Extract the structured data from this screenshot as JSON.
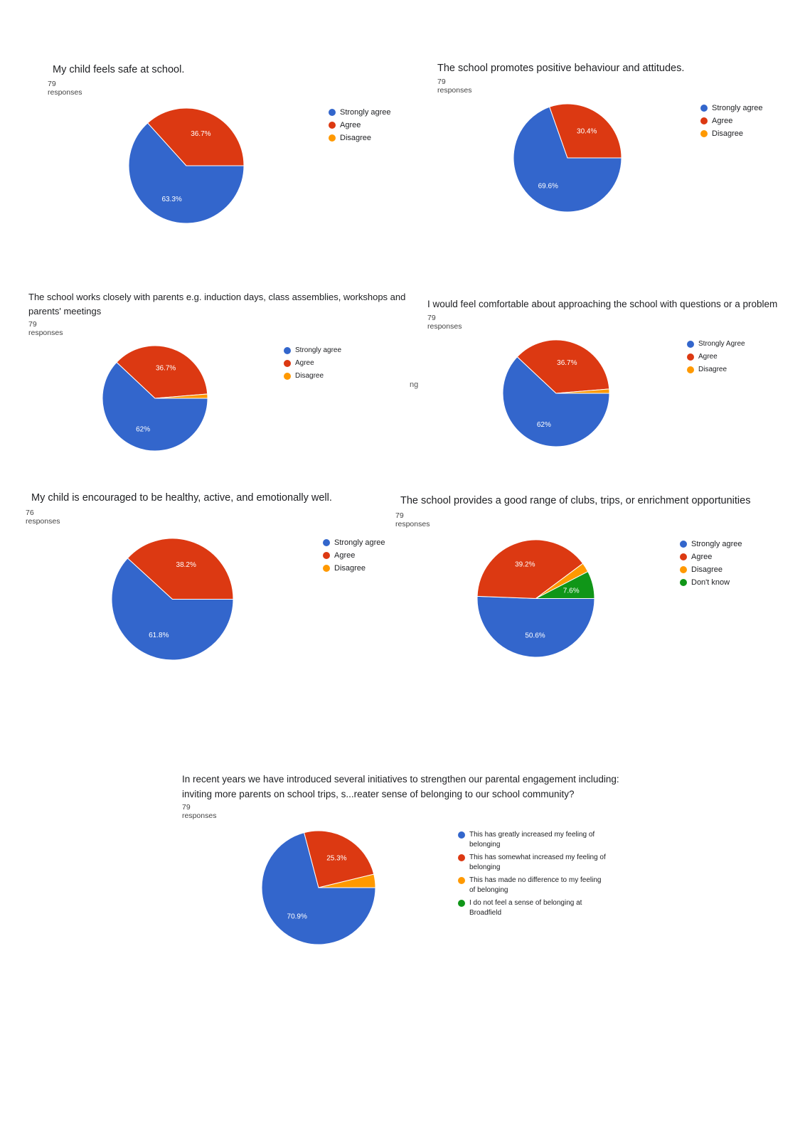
{
  "colors": {
    "blue": "#3366CC",
    "red": "#DC3912",
    "orange": "#FF9900",
    "green": "#109618"
  },
  "stray_text": "ng",
  "chart_data": [
    {
      "type": "pie",
      "title": "My child feels safe at school.",
      "subtitle": "79 responses",
      "legend_position": "right",
      "labels": [
        "Strongly agree",
        "Agree",
        "Disagree"
      ],
      "values": [
        63.3,
        36.7,
        0
      ],
      "data_labels": [
        "63.3%",
        "36.7%",
        ""
      ],
      "colors": [
        "#3366CC",
        "#DC3912",
        "#FF9900"
      ]
    },
    {
      "type": "pie",
      "title": "The school promotes positive behaviour and attitudes.",
      "subtitle": "79 responses",
      "legend_position": "right",
      "labels": [
        "Strongly agree",
        "Agree",
        "Disagree"
      ],
      "values": [
        69.6,
        30.4,
        0
      ],
      "data_labels": [
        "69.6%",
        "30.4%",
        ""
      ],
      "colors": [
        "#3366CC",
        "#DC3912",
        "#FF9900"
      ]
    },
    {
      "type": "pie",
      "title": "The school works closely with parents e.g. induction days, class assemblies, workshops and parents' meetings",
      "subtitle": "79 responses",
      "legend_position": "right",
      "labels": [
        "Strongly agree",
        "Agree",
        "Disagree"
      ],
      "values": [
        62,
        36.7,
        1.3
      ],
      "data_labels": [
        "62%",
        "36.7%",
        ""
      ],
      "colors": [
        "#3366CC",
        "#DC3912",
        "#FF9900"
      ]
    },
    {
      "type": "pie",
      "title": "I would feel comfortable about approaching the school with questions or a problem",
      "subtitle": "79 responses",
      "legend_position": "right",
      "labels": [
        "Strongly Agree",
        "Agree",
        "Disagree"
      ],
      "values": [
        62,
        36.7,
        1.3
      ],
      "data_labels": [
        "62%",
        "36.7%",
        ""
      ],
      "colors": [
        "#3366CC",
        "#DC3912",
        "#FF9900"
      ]
    },
    {
      "type": "pie",
      "title": "My child is encouraged to be healthy, active, and emotionally well.",
      "subtitle": "76 responses",
      "legend_position": "right",
      "labels": [
        "Strongly agree",
        "Agree",
        "Disagree"
      ],
      "values": [
        61.8,
        38.2,
        0
      ],
      "data_labels": [
        "61.8%",
        "38.2%",
        ""
      ],
      "colors": [
        "#3366CC",
        "#DC3912",
        "#FF9900"
      ]
    },
    {
      "type": "pie",
      "title": "The school provides a good range of clubs, trips, or enrichment opportunities",
      "subtitle": "79 responses",
      "legend_position": "right",
      "labels": [
        "Strongly agree",
        "Agree",
        "Disagree",
        "Don't know"
      ],
      "values": [
        50.6,
        39.2,
        2.6,
        7.6
      ],
      "data_labels": [
        "50.6%",
        "39.2%",
        "",
        "7.6%"
      ],
      "colors": [
        "#3366CC",
        "#DC3912",
        "#FF9900",
        "#109618"
      ]
    },
    {
      "type": "pie",
      "title": "In recent years we have introduced several initiatives to strengthen our parental engagement including: inviting more parents on school trips, s...reater sense of belonging to our school community?",
      "subtitle": "79 responses",
      "legend_position": "right",
      "labels": [
        "This has greatly increased my feeling of belonging",
        "This has somewhat increased my feeling of belonging",
        "This has made no difference to my feeling of belonging",
        "I do not feel a sense of belonging at Broadfield"
      ],
      "values": [
        70.9,
        25.3,
        3.8,
        0
      ],
      "data_labels": [
        "70.9%",
        "25.3%",
        "",
        ""
      ],
      "colors": [
        "#3366CC",
        "#DC3912",
        "#FF9900",
        "#109618"
      ]
    }
  ]
}
